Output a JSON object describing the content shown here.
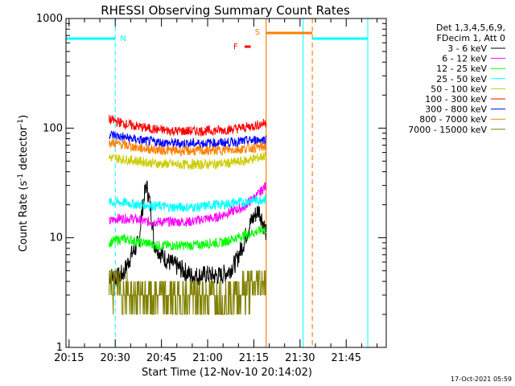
{
  "chart_data": {
    "type": "line",
    "title": "RHESSI Observing Summary Count Rates",
    "xlabel": "Start Time (12-Nov-10 20:14:02)",
    "ylabel_main": "Count Rate (s",
    "ylabel_sup1": "-1",
    "ylabel_mid": " detector",
    "ylabel_sup2": "-1",
    "ylabel_end": ")",
    "yscale": "log",
    "ylim": [
      1,
      1000
    ],
    "xlim_minutes": [
      0,
      104
    ],
    "x_tick_labels": [
      "20:15",
      "20:30",
      "20:45",
      "21:00",
      "21:15",
      "21:30",
      "21:45"
    ],
    "x_tick_minutes": [
      1,
      16,
      31,
      46,
      61,
      76,
      91
    ],
    "y_tick_labels": [
      "1",
      "10",
      "100",
      "1000"
    ],
    "y_tick_values": [
      1,
      10,
      100,
      1000
    ],
    "legend_header": [
      "Det 1,3,4,5,6,9,",
      "FDecim 1, Att 0"
    ],
    "data_start_minute": 14,
    "data_end_minute": 65,
    "series": [
      {
        "name": "3 - 6 keV",
        "color": "#000000",
        "values": [
          4.5,
          4.3,
          4.8,
          7,
          9,
          30,
          9,
          7,
          6,
          5.5,
          5,
          4.5,
          4.5,
          4.6,
          4.5,
          4.5,
          5,
          6,
          9,
          14,
          18,
          11
        ]
      },
      {
        "name": "6 - 12 keV",
        "color": "#ff00ff",
        "values": [
          14,
          15,
          15,
          15,
          14.5,
          14,
          14,
          14,
          14,
          14,
          14,
          14,
          14.5,
          15,
          15,
          16,
          17,
          18,
          19,
          22,
          25,
          30
        ]
      },
      {
        "name": "12 - 25 keV",
        "color": "#00ff00",
        "values": [
          9,
          9.5,
          9.8,
          9.5,
          9,
          9,
          8.5,
          8.5,
          8.5,
          8.5,
          8.5,
          8.5,
          8.6,
          8.8,
          9,
          9,
          9.5,
          10,
          10.5,
          11,
          11.5,
          12
        ]
      },
      {
        "name": "25 - 50 keV",
        "color": "#00ffff",
        "values": [
          21,
          21,
          21,
          20.5,
          20,
          20,
          19.5,
          19.5,
          19,
          19,
          19,
          19,
          19,
          19.5,
          20,
          20,
          20.5,
          21,
          21,
          22,
          22,
          23
        ]
      },
      {
        "name": "50 - 100 keV",
        "color": "#cccc00",
        "values": [
          54,
          53,
          52,
          51,
          50,
          49,
          48,
          47,
          47,
          46.5,
          46.5,
          46.5,
          46.5,
          47,
          47,
          47.5,
          48,
          49,
          50,
          52,
          54,
          56
        ]
      },
      {
        "name": "100 - 300 keV",
        "color": "#ff0000",
        "values": [
          120,
          115,
          110,
          106,
          103,
          100,
          98,
          96,
          95,
          94,
          94,
          94,
          94,
          94.5,
          95,
          96,
          97,
          99,
          101,
          104,
          107,
          112
        ]
      },
      {
        "name": "300 - 800 keV",
        "color": "#0000ff",
        "values": [
          88,
          85,
          82,
          80,
          78,
          76,
          75,
          74,
          73,
          73,
          72.5,
          72.5,
          72.5,
          73,
          73,
          73.5,
          74,
          75,
          76,
          77,
          78,
          79
        ]
      },
      {
        "name": "800 - 7000 keV",
        "color": "#ff8000",
        "values": [
          74,
          72,
          70,
          68,
          66,
          65,
          64,
          63,
          62.5,
          62,
          62,
          62,
          62,
          62,
          62.5,
          63,
          63.5,
          64,
          65,
          66,
          67,
          68
        ]
      },
      {
        "name": "7000 - 15000 keV",
        "color": "#808000",
        "values": [
          3.8,
          3.5,
          3.2,
          3,
          2.9,
          2.9,
          2.9,
          2.9,
          2.9,
          2.9,
          2.9,
          2.9,
          2.9,
          2.9,
          2.9,
          2.9,
          2.9,
          3,
          3.2,
          3.5,
          3.8,
          4
        ]
      }
    ],
    "night_intervals": [
      [
        -2,
        16
      ],
      [
        80,
        98
      ]
    ],
    "night_label": "N",
    "night_color": "#00ffff",
    "saa_interval": [
      65,
      80
    ],
    "saa_label": "S",
    "saa_color": "#ff8000",
    "flare_interval": [
      58,
      60
    ],
    "flare_label": "F",
    "flare_color": "#ff0000",
    "cyan_verticals": [
      -2,
      77,
      98
    ],
    "cyan_dashed": [
      16,
      98
    ],
    "orange_solid": [
      65
    ],
    "orange_dashed": [
      80
    ]
  },
  "footer": {
    "timestamp": "17-Oct-2021 05:59"
  }
}
